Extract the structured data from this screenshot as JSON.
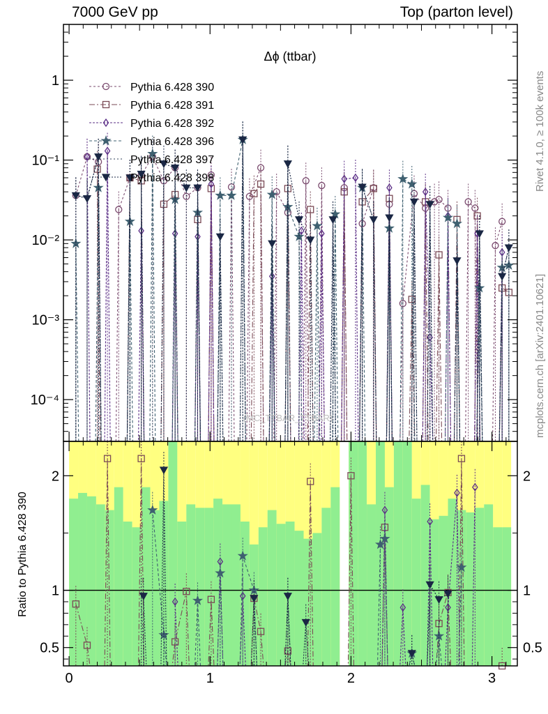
{
  "header": {
    "left": "7000 GeV pp",
    "right": "Top (parton level)"
  },
  "side_labels": {
    "rivet": "Rivet 4.1.0, ≥ 100k events",
    "mcplots": "mcplots.cern.ch [arXiv:2401.10621]"
  },
  "watermark": "(MC_TTBAR_TTBAR)",
  "chart_data": [
    {
      "type": "line",
      "title": "Δϕ (ttbar)",
      "xlabel": "",
      "ylabel": "",
      "yscale": "log",
      "ylim": [
        3e-05,
        5
      ],
      "xlim": [
        -0.04,
        3.18
      ],
      "y_ticks": [
        {
          "value": 1,
          "label": "1"
        },
        {
          "value": 0.1,
          "label": "10⁻¹"
        },
        {
          "value": 0.01,
          "label": "10⁻²"
        },
        {
          "value": 0.001,
          "label": "10⁻³"
        },
        {
          "value": 0.0001,
          "label": "10⁻⁴"
        }
      ],
      "series": [
        {
          "name": "Pythia 6.428 390",
          "color": "#7a4a6e",
          "marker": "circle",
          "dash": "3,3",
          "x": [
            0.048,
            0.128,
            0.208,
            0.352,
            0.432,
            0.512,
            0.592,
            0.672,
            0.752,
            0.832,
            0.912,
            1.008,
            1.152,
            1.28,
            1.36,
            1.472,
            1.552,
            1.68,
            1.792,
            1.952,
            2.08,
            2.16,
            2.272,
            2.368,
            2.448,
            2.528,
            2.592,
            2.624,
            2.688,
            2.832,
            2.88,
            3.024,
            3.072
          ],
          "y": [
            0.036,
            0.11,
            0.095,
            0.024,
            0.06,
            0.065,
            0.11,
            0.055,
            0.08,
            0.035,
            0.045,
            0.065,
            0.046,
            0.035,
            0.08,
            0.04,
            0.022,
            0.055,
            0.048,
            0.045,
            0.016,
            0.045,
            0.028,
            0.0016,
            0.038,
            0.025,
            0.03,
            0.032,
            0.025,
            0.03,
            0.025,
            0.0085,
            0.017
          ]
        },
        {
          "name": "Pythia 6.428 391",
          "color": "#7a4a55",
          "marker": "square",
          "dash": "8,3,2,3",
          "x": [
            0.2,
            0.432,
            0.512,
            0.672,
            0.752,
            0.912,
            1.008,
            1.312,
            1.36,
            1.552,
            1.712,
            1.952,
            2.08,
            2.16,
            2.272,
            2.432,
            2.528,
            2.624,
            2.752,
            2.896,
            3.072,
            3.12
          ],
          "y": [
            0.077,
            0.06,
            0.055,
            0.028,
            0.037,
            0.018,
            0.044,
            0.038,
            0.05,
            0.044,
            0.024,
            0.04,
            0.03,
            0.044,
            0.033,
            0.0018,
            0.03,
            0.0065,
            0.018,
            0.02,
            0.0025,
            0.0022
          ]
        },
        {
          "name": "Pythia 6.428 392",
          "color": "#5a2d86",
          "marker": "diamond",
          "dash": "3,2",
          "x": [
            0.128,
            0.272,
            0.512,
            0.752,
            0.912,
            1.008,
            1.44,
            1.648,
            1.792,
            1.952,
            2.032,
            2.272,
            2.528,
            2.56,
            2.688,
            2.896,
            3.072
          ],
          "y": [
            0.11,
            0.13,
            0.013,
            0.012,
            0.011,
            0.05,
            0.0035,
            0.013,
            0.012,
            0.058,
            0.06,
            0.045,
            0.04,
            0.0006,
            0.02,
            0.012,
            0.007
          ]
        },
        {
          "name": "Pythia 6.428 396",
          "color": "#3f6070",
          "marker": "star",
          "dash": "4,3",
          "x": [
            0.048,
            0.208,
            0.432,
            0.592,
            0.752,
            0.912,
            1.072,
            1.152,
            1.232,
            1.44,
            1.552,
            1.632,
            1.76,
            1.888,
            2.08,
            2.272,
            2.368,
            2.432,
            2.688,
            2.752,
            2.912,
            3.072,
            3.12
          ],
          "y": [
            0.009,
            0.045,
            0.017,
            0.12,
            0.032,
            0.022,
            0.036,
            0.036,
            0.18,
            0.037,
            0.026,
            0.011,
            0.015,
            0.021,
            0.045,
            0.014,
            0.058,
            0.05,
            0.019,
            0.016,
            0.0025,
            0.0045,
            0.0048
          ]
        },
        {
          "name": "Pythia 6.428 397",
          "color": "#2c3e57",
          "marker": "none",
          "dash": "2,3",
          "x": [
            0.048,
            0.128,
            0.208,
            0.432,
            0.512,
            0.752,
            0.912,
            1.072,
            1.232,
            1.44,
            1.552,
            1.872,
            2.08,
            2.16,
            2.272,
            2.448,
            2.56,
            2.752,
            2.912,
            3.072,
            3.12
          ],
          "y": [
            0.036,
            0.034,
            0.11,
            0.06,
            0.065,
            0.08,
            0.045,
            0.011,
            0.18,
            0.009,
            0.09,
            0.018,
            0.045,
            0.018,
            0.02,
            0.03,
            0.028,
            0.006,
            0.012,
            0.0035,
            0.008
          ]
        },
        {
          "name": "Pythia 6.428 398",
          "color": "#1a2744",
          "marker": "triangle-down",
          "dash": "2,2",
          "x": [
            0.048,
            0.128,
            0.208,
            0.432,
            0.512,
            0.672,
            0.752,
            0.832,
            0.912,
            1.072,
            1.232,
            1.44,
            1.552,
            1.632,
            1.712,
            1.872,
            2.08,
            2.16,
            2.272,
            2.448,
            2.56,
            2.752,
            2.912,
            3.072,
            3.12
          ],
          "y": [
            0.036,
            0.033,
            0.11,
            0.06,
            0.067,
            0.09,
            0.08,
            0.045,
            0.045,
            0.011,
            0.18,
            0.009,
            0.09,
            0.018,
            0.01,
            0.018,
            0.046,
            0.018,
            0.019,
            0.03,
            0.028,
            0.0055,
            0.012,
            0.0035,
            0.008
          ]
        }
      ]
    },
    {
      "type": "line",
      "title": "",
      "xlabel": "",
      "ylabel": "Ratio to Pythia 6.428 390",
      "ylim": [
        0.34,
        2.3
      ],
      "xlim": [
        -0.04,
        3.18
      ],
      "y_ticks": [
        {
          "value": 0.5,
          "label": "0.5"
        },
        {
          "value": 1,
          "label": "1"
        },
        {
          "value": 2,
          "label": "2"
        }
      ],
      "x_ticks": [
        {
          "value": 0,
          "label": "0"
        },
        {
          "value": 1,
          "label": "1"
        },
        {
          "value": 2,
          "label": "2"
        },
        {
          "value": 3,
          "label": "3"
        }
      ],
      "reference": 1,
      "band_edges": [
        0,
        0.064,
        0.128,
        0.192,
        0.256,
        0.32,
        0.384,
        0.448,
        0.512,
        0.576,
        0.64,
        0.704,
        0.768,
        0.832,
        0.896,
        0.96,
        1.024,
        1.088,
        1.152,
        1.216,
        1.28,
        1.344,
        1.408,
        1.472,
        1.536,
        1.6,
        1.664,
        1.728,
        1.792,
        1.856,
        1.92,
        1.984,
        2.048,
        2.112,
        2.176,
        2.24,
        2.304,
        2.368,
        2.432,
        2.496,
        2.56,
        2.624,
        2.688,
        2.752,
        2.816,
        2.88,
        2.944,
        3.008,
        3.072,
        3.136
      ],
      "band_yellow": [
        [
          0.34,
          2.3
        ],
        [
          0.34,
          2.3
        ],
        [
          0.34,
          2.3
        ],
        [
          0.34,
          2.3
        ],
        [
          0.34,
          2.3
        ],
        [
          0.34,
          2.3
        ],
        [
          0.34,
          2.3
        ],
        [
          0.34,
          2.3
        ],
        [
          0.34,
          2.3
        ],
        [
          0.34,
          2.3
        ],
        [
          0.34,
          2.3
        ],
        [
          0.34,
          2.3
        ],
        [
          0.34,
          2.3
        ],
        [
          0.34,
          2.3
        ],
        [
          0.34,
          2.3
        ],
        [
          0.34,
          2.3
        ],
        [
          0.34,
          2.3
        ],
        [
          0.34,
          2.3
        ],
        [
          0.34,
          2.3
        ],
        [
          0.34,
          2.3
        ],
        [
          0.34,
          2.3
        ],
        [
          0.34,
          2.3
        ],
        [
          0.34,
          2.3
        ],
        [
          0.34,
          2.3
        ],
        [
          0.34,
          2.3
        ],
        [
          0.34,
          2.3
        ],
        [
          0.34,
          2.3
        ],
        [
          0.34,
          2.3
        ],
        [
          0.34,
          2.3
        ],
        [
          0.34,
          2.3
        ],
        [
          0.34,
          0.34
        ],
        [
          0.34,
          2.3
        ],
        [
          0.34,
          2.3
        ],
        [
          0.34,
          2.3
        ],
        [
          0.34,
          2.3
        ],
        [
          0.34,
          2.3
        ],
        [
          0.34,
          2.3
        ],
        [
          0.34,
          2.3
        ],
        [
          0.34,
          2.3
        ],
        [
          0.34,
          2.3
        ],
        [
          0.34,
          2.3
        ],
        [
          0.34,
          2.3
        ],
        [
          0.34,
          2.3
        ],
        [
          0.34,
          2.3
        ],
        [
          0.34,
          2.3
        ],
        [
          0.34,
          2.3
        ],
        [
          0.34,
          2.3
        ],
        [
          0.34,
          2.3
        ],
        [
          0.34,
          2.3
        ]
      ],
      "band_green": [
        [
          0.34,
          1.8
        ],
        [
          0.34,
          1.85
        ],
        [
          0.34,
          1.82
        ],
        [
          0.34,
          1.75
        ],
        [
          0.34,
          1.7
        ],
        [
          0.34,
          1.9
        ],
        [
          0.34,
          1.6
        ],
        [
          0.34,
          1.55
        ],
        [
          0.34,
          1.9
        ],
        [
          0.34,
          1.7
        ],
        [
          0.34,
          1.78
        ],
        [
          0.34,
          2.3
        ],
        [
          0.34,
          1.6
        ],
        [
          0.34,
          1.75
        ],
        [
          0.34,
          1.72
        ],
        [
          0.34,
          1.72
        ],
        [
          0.34,
          1.8
        ],
        [
          0.34,
          1.75
        ],
        [
          0.34,
          1.75
        ],
        [
          0.34,
          1.6
        ],
        [
          0.34,
          1.4
        ],
        [
          0.34,
          1.55
        ],
        [
          0.34,
          1.7
        ],
        [
          0.34,
          1.58
        ],
        [
          0.34,
          1.6
        ],
        [
          0.34,
          1.52
        ],
        [
          0.34,
          1.45
        ],
        [
          0.34,
          1.5
        ],
        [
          0.34,
          1.72
        ],
        [
          0.34,
          1.9
        ],
        [
          0.34,
          0.34
        ],
        [
          0.34,
          2.3
        ],
        [
          0.34,
          2.3
        ],
        [
          0.34,
          1.75
        ],
        [
          0.34,
          2.3
        ],
        [
          0.34,
          1.9
        ],
        [
          0.34,
          2.3
        ],
        [
          0.34,
          2.3
        ],
        [
          0.34,
          1.8
        ],
        [
          0.34,
          1.92
        ],
        [
          0.34,
          1.62
        ],
        [
          0.34,
          1.65
        ],
        [
          0.34,
          1.8
        ],
        [
          0.34,
          1.7
        ],
        [
          0.34,
          1.68
        ],
        [
          0.34,
          1.72
        ],
        [
          0.34,
          1.75
        ],
        [
          0.34,
          1.55
        ],
        [
          0.34,
          1.55
        ]
      ],
      "series": [
        {
          "name": "Pythia 6.428 391",
          "color": "#7a4a55",
          "marker": "square",
          "dash": "8,3,2,3",
          "x": [
            0.048,
            0.128,
            0.272,
            0.512,
            0.752,
            0.832,
            1.008,
            1.312,
            1.36,
            1.552,
            1.712,
            2.0,
            2.24,
            2.624,
            2.688,
            2.784,
            3.072
          ],
          "y": [
            0.88,
            0.52,
            2.15,
            2.15,
            0.55,
            0.99,
            0.92,
            0.93,
            0.64,
            0.47,
            1.95,
            2.0,
            1.55,
            0.71,
            0.98,
            2.15,
            0.32
          ]
        },
        {
          "name": "Pythia 6.428 392",
          "color": "#5a2d86",
          "marker": "diamond",
          "dash": "3,2",
          "x": [
            0.752,
            1.072,
            1.232,
            2.24,
            2.368,
            2.56,
            2.688,
            2.752,
            2.88
          ],
          "y": [
            0.9,
            1.25,
            0.95,
            1.7,
            0.85,
            1.6,
            0.85,
            1.85,
            1.9
          ]
        },
        {
          "name": "Pythia 6.428 396",
          "color": "#3f6070",
          "marker": "star",
          "dash": "4,3",
          "x": [
            0.592,
            0.672,
            0.912,
            1.072,
            1.232,
            1.312,
            2.208,
            2.24,
            2.432,
            2.624,
            2.784
          ],
          "y": [
            1.7,
            0.61,
            0.91,
            1.15,
            1.3,
            1.0,
            1.4,
            1.45,
            0.45,
            0.6,
            1.2
          ]
        },
        {
          "name": "Pythia 6.428 397",
          "color": "#2c3e57",
          "marker": "none",
          "dash": "2,3",
          "x": [
            0.512,
            1.552,
            2.56
          ],
          "y": [
            0.95,
            0.95,
            0.9
          ]
        },
        {
          "name": "Pythia 6.428 398",
          "color": "#1a2744",
          "marker": "triangle-down",
          "dash": "2,2",
          "x": [
            0.528,
            0.672,
            1.312,
            1.552,
            1.68,
            2.432,
            2.56,
            2.624,
            2.688
          ],
          "y": [
            0.95,
            2.05,
            0.93,
            0.95,
            0.72,
            0.45,
            1.05,
            0.92,
            0.97
          ]
        }
      ]
    }
  ]
}
